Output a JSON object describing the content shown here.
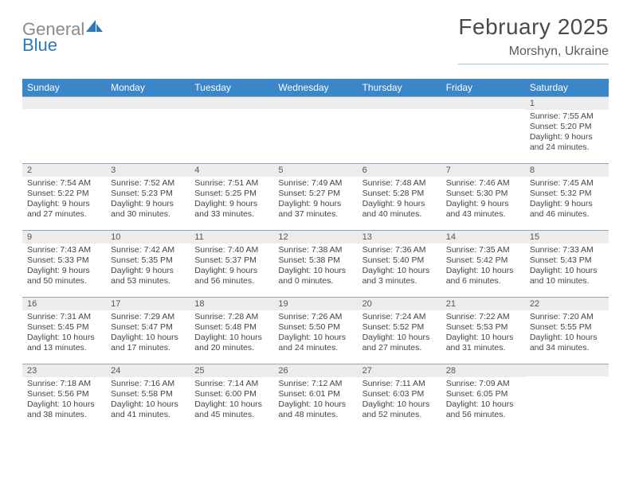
{
  "brand": {
    "word1": "General",
    "word2": "Blue"
  },
  "title": {
    "month": "February 2025",
    "location": "Morshyn, Ukraine"
  },
  "colors": {
    "header_bg": "#3a86c9",
    "header_fg": "#ffffff",
    "daynum_bg": "#ececec",
    "rule": "#8aa9c4",
    "brand_gray": "#8a8a8a",
    "brand_blue": "#2f77bd"
  },
  "weekdays": [
    "Sunday",
    "Monday",
    "Tuesday",
    "Wednesday",
    "Thursday",
    "Friday",
    "Saturday"
  ],
  "weeks": [
    [
      {
        "n": "",
        "sunrise": "",
        "sunset": "",
        "daylight": ""
      },
      {
        "n": "",
        "sunrise": "",
        "sunset": "",
        "daylight": ""
      },
      {
        "n": "",
        "sunrise": "",
        "sunset": "",
        "daylight": ""
      },
      {
        "n": "",
        "sunrise": "",
        "sunset": "",
        "daylight": ""
      },
      {
        "n": "",
        "sunrise": "",
        "sunset": "",
        "daylight": ""
      },
      {
        "n": "",
        "sunrise": "",
        "sunset": "",
        "daylight": ""
      },
      {
        "n": "1",
        "sunrise": "Sunrise: 7:55 AM",
        "sunset": "Sunset: 5:20 PM",
        "daylight": "Daylight: 9 hours and 24 minutes."
      }
    ],
    [
      {
        "n": "2",
        "sunrise": "Sunrise: 7:54 AM",
        "sunset": "Sunset: 5:22 PM",
        "daylight": "Daylight: 9 hours and 27 minutes."
      },
      {
        "n": "3",
        "sunrise": "Sunrise: 7:52 AM",
        "sunset": "Sunset: 5:23 PM",
        "daylight": "Daylight: 9 hours and 30 minutes."
      },
      {
        "n": "4",
        "sunrise": "Sunrise: 7:51 AM",
        "sunset": "Sunset: 5:25 PM",
        "daylight": "Daylight: 9 hours and 33 minutes."
      },
      {
        "n": "5",
        "sunrise": "Sunrise: 7:49 AM",
        "sunset": "Sunset: 5:27 PM",
        "daylight": "Daylight: 9 hours and 37 minutes."
      },
      {
        "n": "6",
        "sunrise": "Sunrise: 7:48 AM",
        "sunset": "Sunset: 5:28 PM",
        "daylight": "Daylight: 9 hours and 40 minutes."
      },
      {
        "n": "7",
        "sunrise": "Sunrise: 7:46 AM",
        "sunset": "Sunset: 5:30 PM",
        "daylight": "Daylight: 9 hours and 43 minutes."
      },
      {
        "n": "8",
        "sunrise": "Sunrise: 7:45 AM",
        "sunset": "Sunset: 5:32 PM",
        "daylight": "Daylight: 9 hours and 46 minutes."
      }
    ],
    [
      {
        "n": "9",
        "sunrise": "Sunrise: 7:43 AM",
        "sunset": "Sunset: 5:33 PM",
        "daylight": "Daylight: 9 hours and 50 minutes."
      },
      {
        "n": "10",
        "sunrise": "Sunrise: 7:42 AM",
        "sunset": "Sunset: 5:35 PM",
        "daylight": "Daylight: 9 hours and 53 minutes."
      },
      {
        "n": "11",
        "sunrise": "Sunrise: 7:40 AM",
        "sunset": "Sunset: 5:37 PM",
        "daylight": "Daylight: 9 hours and 56 minutes."
      },
      {
        "n": "12",
        "sunrise": "Sunrise: 7:38 AM",
        "sunset": "Sunset: 5:38 PM",
        "daylight": "Daylight: 10 hours and 0 minutes."
      },
      {
        "n": "13",
        "sunrise": "Sunrise: 7:36 AM",
        "sunset": "Sunset: 5:40 PM",
        "daylight": "Daylight: 10 hours and 3 minutes."
      },
      {
        "n": "14",
        "sunrise": "Sunrise: 7:35 AM",
        "sunset": "Sunset: 5:42 PM",
        "daylight": "Daylight: 10 hours and 6 minutes."
      },
      {
        "n": "15",
        "sunrise": "Sunrise: 7:33 AM",
        "sunset": "Sunset: 5:43 PM",
        "daylight": "Daylight: 10 hours and 10 minutes."
      }
    ],
    [
      {
        "n": "16",
        "sunrise": "Sunrise: 7:31 AM",
        "sunset": "Sunset: 5:45 PM",
        "daylight": "Daylight: 10 hours and 13 minutes."
      },
      {
        "n": "17",
        "sunrise": "Sunrise: 7:29 AM",
        "sunset": "Sunset: 5:47 PM",
        "daylight": "Daylight: 10 hours and 17 minutes."
      },
      {
        "n": "18",
        "sunrise": "Sunrise: 7:28 AM",
        "sunset": "Sunset: 5:48 PM",
        "daylight": "Daylight: 10 hours and 20 minutes."
      },
      {
        "n": "19",
        "sunrise": "Sunrise: 7:26 AM",
        "sunset": "Sunset: 5:50 PM",
        "daylight": "Daylight: 10 hours and 24 minutes."
      },
      {
        "n": "20",
        "sunrise": "Sunrise: 7:24 AM",
        "sunset": "Sunset: 5:52 PM",
        "daylight": "Daylight: 10 hours and 27 minutes."
      },
      {
        "n": "21",
        "sunrise": "Sunrise: 7:22 AM",
        "sunset": "Sunset: 5:53 PM",
        "daylight": "Daylight: 10 hours and 31 minutes."
      },
      {
        "n": "22",
        "sunrise": "Sunrise: 7:20 AM",
        "sunset": "Sunset: 5:55 PM",
        "daylight": "Daylight: 10 hours and 34 minutes."
      }
    ],
    [
      {
        "n": "23",
        "sunrise": "Sunrise: 7:18 AM",
        "sunset": "Sunset: 5:56 PM",
        "daylight": "Daylight: 10 hours and 38 minutes."
      },
      {
        "n": "24",
        "sunrise": "Sunrise: 7:16 AM",
        "sunset": "Sunset: 5:58 PM",
        "daylight": "Daylight: 10 hours and 41 minutes."
      },
      {
        "n": "25",
        "sunrise": "Sunrise: 7:14 AM",
        "sunset": "Sunset: 6:00 PM",
        "daylight": "Daylight: 10 hours and 45 minutes."
      },
      {
        "n": "26",
        "sunrise": "Sunrise: 7:12 AM",
        "sunset": "Sunset: 6:01 PM",
        "daylight": "Daylight: 10 hours and 48 minutes."
      },
      {
        "n": "27",
        "sunrise": "Sunrise: 7:11 AM",
        "sunset": "Sunset: 6:03 PM",
        "daylight": "Daylight: 10 hours and 52 minutes."
      },
      {
        "n": "28",
        "sunrise": "Sunrise: 7:09 AM",
        "sunset": "Sunset: 6:05 PM",
        "daylight": "Daylight: 10 hours and 56 minutes."
      },
      {
        "n": "",
        "sunrise": "",
        "sunset": "",
        "daylight": ""
      }
    ]
  ]
}
